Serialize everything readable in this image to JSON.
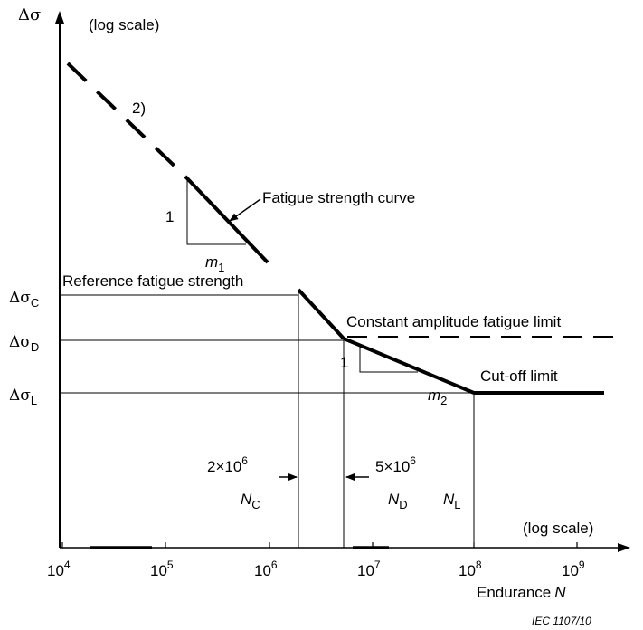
{
  "y_axis": {
    "symbol": "Δσ",
    "scale_note": "(log scale)",
    "levels": [
      {
        "base": "Δσ",
        "sub": "C"
      },
      {
        "base": "Δσ",
        "sub": "D"
      },
      {
        "base": "Δσ",
        "sub": "L"
      }
    ]
  },
  "x_axis": {
    "scale_note": "(log scale)",
    "title_text": "Endurance",
    "title_var": "N",
    "ticks": [
      {
        "base": "10",
        "exp": "4"
      },
      {
        "base": "10",
        "exp": "5"
      },
      {
        "base": "10",
        "exp": "6"
      },
      {
        "base": "10",
        "exp": "7"
      },
      {
        "base": "10",
        "exp": "8"
      },
      {
        "base": "10",
        "exp": "9"
      }
    ]
  },
  "labels": {
    "note_2": "2)",
    "fatigue_curve": "Fatigue strength curve",
    "reference_strength": "Reference fatigue strength",
    "constant_amplitude": "Constant amplitude fatigue limit",
    "cutoff": "Cut-off limit",
    "slope_one_1": "1",
    "slope_one_2": "1",
    "m1_base": "m",
    "m1_sub": "1",
    "m2_base": "m",
    "m2_sub": "2",
    "nc_value_mant": "2×10",
    "nc_value_exp": "6",
    "nc_base": "N",
    "nc_sub": "C",
    "nd_value_mant": "5×10",
    "nd_value_exp": "6",
    "nd_base": "N",
    "nd_sub": "D",
    "nl_base": "N",
    "nl_sub": "L"
  },
  "footer": {
    "reference": "IEC  1107/10"
  }
}
